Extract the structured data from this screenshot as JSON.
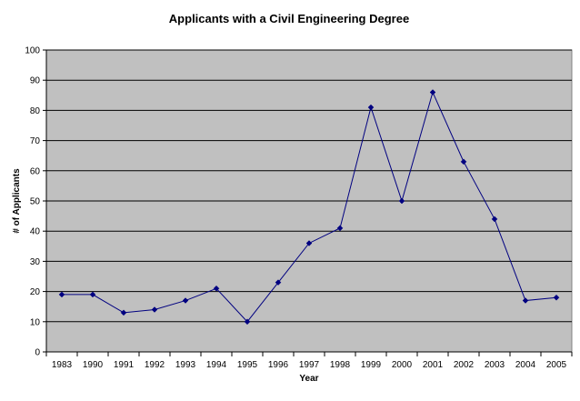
{
  "chart_data": {
    "type": "line",
    "title": "Applicants with a Civil Engineering Degree",
    "xlabel": "Year",
    "ylabel": "# of Applicants",
    "ylim": [
      0,
      100
    ],
    "yticks": [
      0,
      10,
      20,
      30,
      40,
      50,
      60,
      70,
      80,
      90,
      100
    ],
    "grid": true,
    "legend": "none",
    "colors": {
      "plot_area": "#c0c0c0",
      "line": "#000080",
      "marker": "#000080",
      "grid": "#000000"
    },
    "categories": [
      "1983",
      "1990",
      "1991",
      "1992",
      "1993",
      "1994",
      "1995",
      "1996",
      "1997",
      "1998",
      "1999",
      "2000",
      "2001",
      "2002",
      "2003",
      "2004",
      "2005"
    ],
    "series": [
      {
        "values": [
          19,
          19,
          13,
          14,
          17,
          21,
          10,
          23,
          36,
          41,
          81,
          50,
          86,
          63,
          44,
          17,
          18
        ]
      }
    ]
  }
}
